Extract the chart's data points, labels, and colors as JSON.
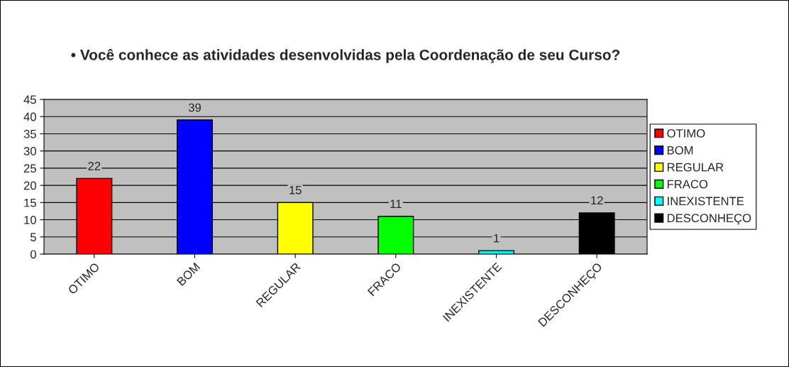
{
  "chart_data": {
    "type": "bar",
    "title": "• Você conhece as atividades desenvolvidas pela Coordenação de seu Curso?",
    "categories": [
      "OTIMO",
      "BOM",
      "REGULAR",
      "FRACO",
      "INEXISTENTE",
      "DESCONHEÇO"
    ],
    "series": [
      {
        "name": "OTIMO",
        "color": "#ff0000",
        "values": [
          22,
          null,
          null,
          null,
          null,
          null
        ]
      },
      {
        "name": "BOM",
        "color": "#0000ff",
        "values": [
          null,
          39,
          null,
          null,
          null,
          null
        ]
      },
      {
        "name": "REGULAR",
        "color": "#ffff00",
        "values": [
          null,
          null,
          15,
          null,
          null,
          null
        ]
      },
      {
        "name": "FRACO",
        "color": "#00ff00",
        "values": [
          null,
          null,
          null,
          11,
          null,
          null
        ]
      },
      {
        "name": "INEXISTENTE",
        "color": "#00ffff",
        "values": [
          null,
          null,
          null,
          null,
          1,
          null
        ]
      },
      {
        "name": "DESCONHEÇO",
        "color": "#000000",
        "values": [
          null,
          null,
          null,
          null,
          null,
          12
        ]
      }
    ],
    "ylim": [
      0,
      45
    ],
    "yticks": [
      0,
      5,
      10,
      15,
      20,
      25,
      30,
      35,
      40,
      45
    ],
    "grid": "y",
    "legend": "right",
    "data_labels": true
  }
}
